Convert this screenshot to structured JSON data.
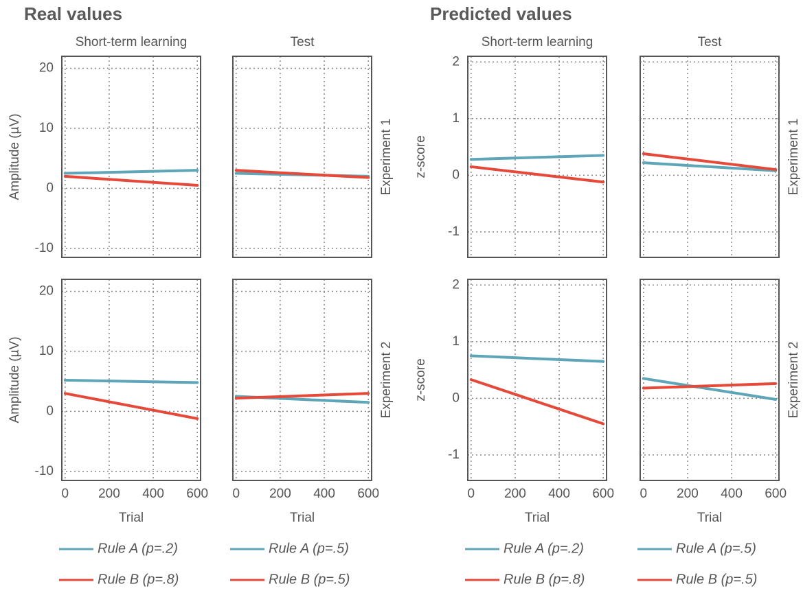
{
  "chart_data": [
    {
      "type": "line",
      "group_title": "Real values",
      "title": "Short-term learning",
      "ylabel": "Amplitude (µV)",
      "x": [
        0,
        600
      ],
      "xlim": [
        -15,
        615
      ],
      "ylim": [
        -11.5,
        22
      ],
      "xticks": [
        0,
        200,
        400,
        600
      ],
      "yticks": [
        -10,
        0,
        10,
        20
      ],
      "grid": true,
      "series": [
        {
          "name": "Rule A (p=.2)",
          "color": "#5fa5b8",
          "values": [
            2.5,
            3
          ]
        },
        {
          "name": "Rule B (p=.8)",
          "color": "#e5493a",
          "values": [
            2,
            0.5
          ]
        }
      ]
    },
    {
      "type": "line",
      "title": "Test",
      "row_label": "Experiment 1",
      "x": [
        0,
        600
      ],
      "xlim": [
        -15,
        615
      ],
      "ylim": [
        -11.5,
        22
      ],
      "xticks": [
        0,
        200,
        400,
        600
      ],
      "yticks": [
        -10,
        0,
        10,
        20
      ],
      "grid": true,
      "series": [
        {
          "name": "Rule A (p=.5)",
          "color": "#5fa5b8",
          "values": [
            2.5,
            2
          ]
        },
        {
          "name": "Rule B (p=.5)",
          "color": "#e5493a",
          "values": [
            3,
            1.8
          ]
        }
      ]
    },
    {
      "type": "line",
      "ylabel": "Amplitude (µV)",
      "xlabel": "Trial",
      "legend": "below",
      "x": [
        0,
        600
      ],
      "xlim": [
        -15,
        615
      ],
      "ylim": [
        -11.5,
        22
      ],
      "xticks": [
        0,
        200,
        400,
        600
      ],
      "yticks": [
        -10,
        0,
        10,
        20
      ],
      "grid": true,
      "series": [
        {
          "name": "Rule A (p=.2)",
          "color": "#5fa5b8",
          "values": [
            5.2,
            4.8
          ]
        },
        {
          "name": "Rule B (p=.8)",
          "color": "#e5493a",
          "values": [
            3,
            -1.2
          ]
        }
      ]
    },
    {
      "type": "line",
      "row_label": "Experiment 2",
      "xlabel": "Trial",
      "legend": "below",
      "x": [
        0,
        600
      ],
      "xlim": [
        -15,
        615
      ],
      "ylim": [
        -11.5,
        22
      ],
      "xticks": [
        0,
        200,
        400,
        600
      ],
      "yticks": [
        -10,
        0,
        10,
        20
      ],
      "grid": true,
      "series": [
        {
          "name": "Rule A (p=.5)",
          "color": "#5fa5b8",
          "values": [
            2.5,
            1.5
          ]
        },
        {
          "name": "Rule B (p=.5)",
          "color": "#e5493a",
          "values": [
            2.2,
            3
          ]
        }
      ]
    },
    {
      "type": "line",
      "group_title": "Predicted values",
      "title": "Short-term learning",
      "ylabel": "z-score",
      "x": [
        0,
        600
      ],
      "xlim": [
        -15,
        615
      ],
      "ylim": [
        -1.45,
        2.1
      ],
      "xticks": [
        0,
        200,
        400,
        600
      ],
      "yticks": [
        -1,
        0,
        1,
        2
      ],
      "grid": true,
      "series": [
        {
          "name": "Rule A (p=.2)",
          "color": "#5fa5b8",
          "values": [
            0.28,
            0.35
          ]
        },
        {
          "name": "Rule B (p=.8)",
          "color": "#e5493a",
          "values": [
            0.15,
            -0.12
          ]
        }
      ]
    },
    {
      "type": "line",
      "title": "Test",
      "row_label": "Experiment 1",
      "x": [
        0,
        600
      ],
      "xlim": [
        -15,
        615
      ],
      "ylim": [
        -1.45,
        2.1
      ],
      "xticks": [
        0,
        200,
        400,
        600
      ],
      "yticks": [
        -1,
        0,
        1,
        2
      ],
      "grid": true,
      "series": [
        {
          "name": "Rule A (p=.5)",
          "color": "#5fa5b8",
          "values": [
            0.22,
            0.08
          ]
        },
        {
          "name": "Rule B (p=.5)",
          "color": "#e5493a",
          "values": [
            0.38,
            0.1
          ]
        }
      ]
    },
    {
      "type": "line",
      "ylabel": "z-score",
      "xlabel": "Trial",
      "legend": "below",
      "x": [
        0,
        600
      ],
      "xlim": [
        -15,
        615
      ],
      "ylim": [
        -1.45,
        2.1
      ],
      "xticks": [
        0,
        200,
        400,
        600
      ],
      "yticks": [
        -1,
        0,
        1,
        2
      ],
      "grid": true,
      "series": [
        {
          "name": "Rule A (p=.2)",
          "color": "#5fa5b8",
          "values": [
            0.75,
            0.65
          ]
        },
        {
          "name": "Rule B (p=.8)",
          "color": "#e5493a",
          "values": [
            0.33,
            -0.45
          ]
        }
      ]
    },
    {
      "type": "line",
      "row_label": "Experiment 2",
      "xlabel": "Trial",
      "legend": "below",
      "x": [
        0,
        600
      ],
      "xlim": [
        -15,
        615
      ],
      "ylim": [
        -1.45,
        2.1
      ],
      "xticks": [
        0,
        200,
        400,
        600
      ],
      "yticks": [
        -1,
        0,
        1,
        2
      ],
      "grid": true,
      "series": [
        {
          "name": "Rule A (p=.5)",
          "color": "#5fa5b8",
          "values": [
            0.35,
            -0.02
          ]
        },
        {
          "name": "Rule B (p=.5)",
          "color": "#e5493a",
          "values": [
            0.18,
            0.26
          ]
        }
      ]
    }
  ]
}
